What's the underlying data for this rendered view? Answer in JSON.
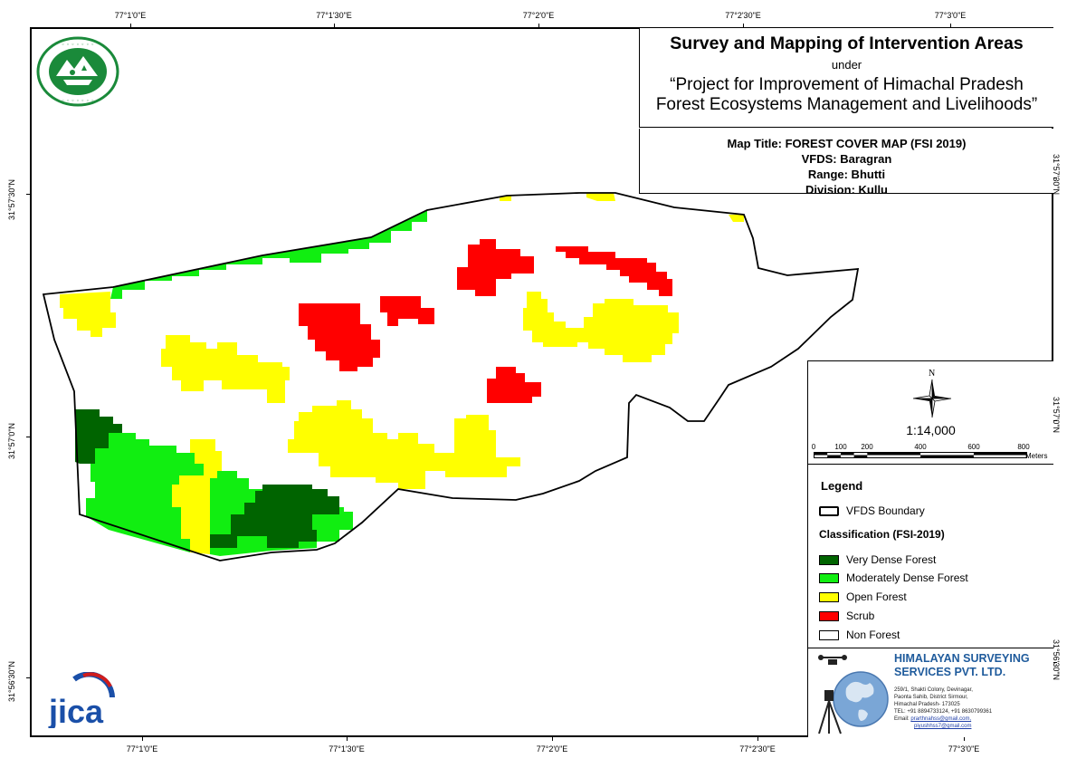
{
  "title": {
    "main": "Survey and Mapping of Intervention Areas",
    "under": "under",
    "project_line1": "“Project for Improvement of Himachal Pradesh",
    "project_line2": "Forest Ecosystems Management and Livelihoods”"
  },
  "map_info": {
    "map_title": "Map Title: FOREST COVER MAP (FSI 2019)",
    "vfds": "VFDS: Baragran",
    "range": "Range: Bhutti",
    "division": "Division: Kullu"
  },
  "graticule": {
    "top": [
      "77°1'0\"E",
      "77°1'30\"E",
      "77°2'0\"E",
      "77°2'30\"E",
      "77°3'0\"E"
    ],
    "bottom": [
      "77°1'0\"E",
      "77°1'30\"E",
      "77°2'0\"E",
      "77°2'30\"E",
      "77°3'0\"E"
    ],
    "left": [
      "31°57'30\"N",
      "31°57'0\"N",
      "31°56'30\"N"
    ],
    "right": [
      "31°57'30\"N",
      "31°57'0\"N",
      "31°56'30\"N"
    ]
  },
  "north_arrow": {
    "label": "N"
  },
  "scale": {
    "ratio": "1:14,000",
    "bar_labels": [
      "0",
      "100",
      "200",
      "400",
      "600",
      "800"
    ],
    "unit": "Meters"
  },
  "legend": {
    "title": "Legend",
    "boundary_label": "VFDS Boundary",
    "classification_title": "Classification (FSI-2019)",
    "classes": [
      {
        "label": "Very Dense Forest",
        "color": "#006400"
      },
      {
        "label": "Moderately Dense Forest",
        "color": "#11ee11"
      },
      {
        "label": "Open Forest",
        "color": "#ffff00"
      },
      {
        "label": "Scrub",
        "color": "#ff0000"
      },
      {
        "label": "Non Forest",
        "color": "#ffffff"
      }
    ]
  },
  "company": {
    "name_line1": "HIMALAYAN SURVEYING",
    "name_line2": "SERVICES PVT. LTD.",
    "address": [
      "259/1, Shakti Colony, Devinagar,",
      "Paonta Sahib, District Sirmour,",
      "Himachal Pradesh- 173025"
    ],
    "tel": "TEL: +91 8894733124, +91 8630799361",
    "email_prefix": "Email: ",
    "email1": "prarthnahss@gmail.com,",
    "email2": "piyushhss7@gmail.com"
  },
  "logos": {
    "forest_logo": "hp-forest-department-logo-icon",
    "jica_logo": "jica-logo-icon",
    "jica_text": "jica"
  },
  "colors": {
    "very_dense": "#006400",
    "mod_dense": "#11ee11",
    "open": "#ffff00",
    "scrub": "#ff0000"
  }
}
